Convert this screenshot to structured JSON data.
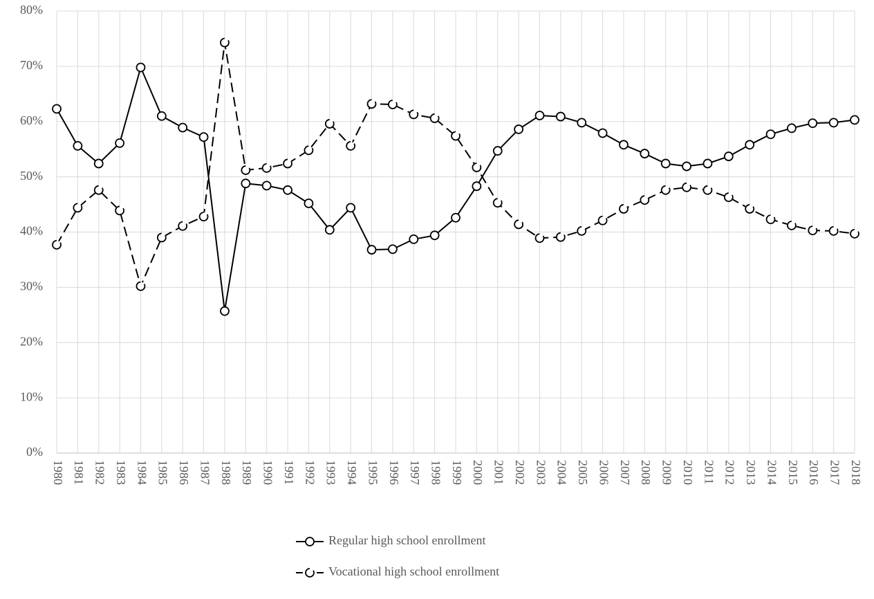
{
  "chart_data": {
    "type": "line",
    "categories": [
      "1980",
      "1981",
      "1982",
      "1983",
      "1984",
      "1985",
      "1986",
      "1987",
      "1988",
      "1989",
      "1990",
      "1991",
      "1992",
      "1993",
      "1994",
      "1995",
      "1996",
      "1997",
      "1998",
      "1999",
      "2000",
      "2001",
      "2002",
      "2003",
      "2004",
      "2005",
      "2006",
      "2007",
      "2008",
      "2009",
      "2010",
      "2011",
      "2012",
      "2013",
      "2014",
      "2015",
      "2016",
      "2017",
      "2018"
    ],
    "series": [
      {
        "name": "Regular high school enrollment",
        "color": "#000000",
        "dash": false,
        "values": [
          62.3,
          55.6,
          52.4,
          56.1,
          69.8,
          61.0,
          58.9,
          57.2,
          25.7,
          48.8,
          48.4,
          47.6,
          45.2,
          40.4,
          44.4,
          36.8,
          36.9,
          38.7,
          39.4,
          42.6,
          48.3,
          54.7,
          58.6,
          61.1,
          60.9,
          59.8,
          57.9,
          55.8,
          54.2,
          52.4,
          51.9,
          52.4,
          53.7,
          55.8,
          57.7,
          58.8,
          59.7,
          59.8,
          60.3
        ]
      },
      {
        "name": "Vocational high school enrollment",
        "color": "#000000",
        "dash": true,
        "values": [
          37.7,
          44.4,
          47.6,
          43.9,
          30.2,
          39.0,
          41.1,
          42.8,
          74.3,
          51.2,
          51.6,
          52.4,
          54.8,
          59.6,
          55.6,
          63.2,
          63.1,
          61.3,
          60.6,
          57.4,
          51.7,
          45.3,
          41.4,
          38.9,
          39.1,
          40.2,
          42.1,
          44.2,
          45.8,
          47.6,
          48.1,
          47.6,
          46.3,
          44.2,
          42.3,
          41.2,
          40.3,
          40.2,
          39.7
        ]
      }
    ],
    "ylim": [
      0,
      80
    ],
    "yticks": [
      {
        "value": 0,
        "label": "0%"
      },
      {
        "value": 10,
        "label": "10%"
      },
      {
        "value": 20,
        "label": "20%"
      },
      {
        "value": 30,
        "label": "30%"
      },
      {
        "value": 40,
        "label": "40%"
      },
      {
        "value": 50,
        "label": "50%"
      },
      {
        "value": 60,
        "label": "60%"
      },
      {
        "value": 70,
        "label": "70%"
      },
      {
        "value": 80,
        "label": "80%"
      }
    ],
    "grid": true,
    "legend": "bottom"
  }
}
